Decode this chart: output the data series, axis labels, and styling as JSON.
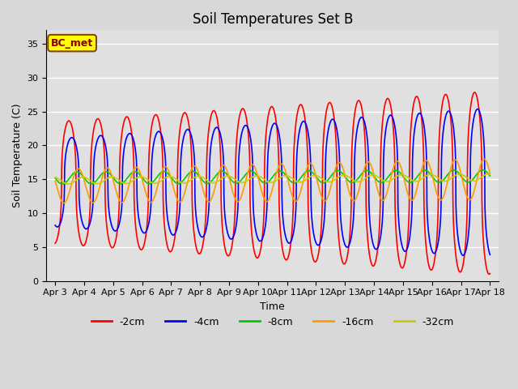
{
  "title": "Soil Temperatures Set B",
  "xlabel": "Time",
  "ylabel": "Soil Temperature (C)",
  "ylim": [
    0,
    37
  ],
  "yticks": [
    0,
    5,
    10,
    15,
    20,
    25,
    30,
    35
  ],
  "fig_bg_color": "#d8d8d8",
  "plot_bg_color": "#e0e0e0",
  "annotation_text": "BC_met",
  "series": [
    {
      "label": "-2cm",
      "color": "#ff0000",
      "linewidth": 1.2
    },
    {
      "label": "-4cm",
      "color": "#0000ff",
      "linewidth": 1.2
    },
    {
      "label": "-8cm",
      "color": "#00cc00",
      "linewidth": 1.2
    },
    {
      "label": "-16cm",
      "color": "#ff9900",
      "linewidth": 1.2
    },
    {
      "label": "-32cm",
      "color": "#cccc00",
      "linewidth": 1.2
    }
  ],
  "xtick_labels": [
    "Apr 3",
    "Apr 4",
    "Apr 5",
    "Apr 6",
    "Apr 7",
    "Apr 8",
    "Apr 9",
    "Apr 10",
    "Apr 11",
    "Apr 12",
    "Apr 13",
    "Apr 14",
    "Apr 15",
    "Apr 16",
    "Apr 17",
    "Apr 18"
  ],
  "title_fontsize": 12,
  "axis_label_fontsize": 9,
  "tick_fontsize": 8
}
